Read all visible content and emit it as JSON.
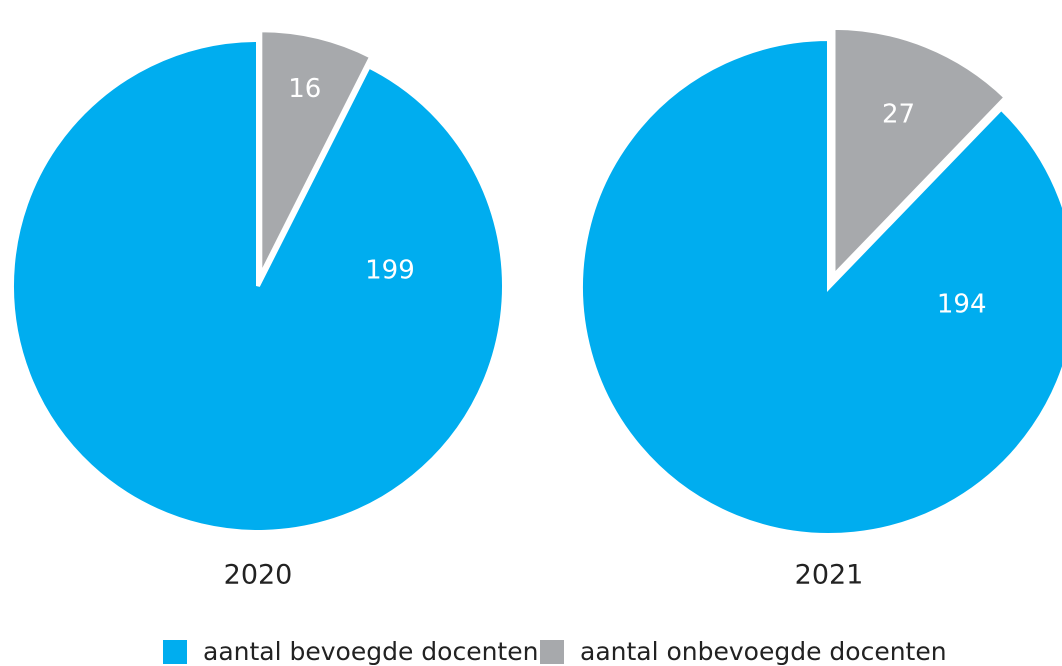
{
  "chart_data": [
    {
      "type": "pie",
      "title": "2020",
      "slices": [
        {
          "label": "aantal bevoegde docenten",
          "value": 199
        },
        {
          "label": "aantal onbevoegde docenten",
          "value": 16
        }
      ],
      "exploded": "aantal onbevoegde docenten"
    },
    {
      "type": "pie",
      "title": "2021",
      "slices": [
        {
          "label": "aantal bevoegde docenten",
          "value": 194
        },
        {
          "label": "aantal onbevoegde docenten",
          "value": 27
        }
      ],
      "exploded": "aantal onbevoegde docenten"
    }
  ],
  "legend": {
    "placement": "bottom-center",
    "items": [
      {
        "label": "aantal bevoegde docenten",
        "color": "#00adef"
      },
      {
        "label": "aantal onbevoegde docenten",
        "color": "#a7a9ac"
      }
    ]
  },
  "colors": {
    "aantal bevoegde docenten": "#00adef",
    "aantal onbevoegde docenten": "#a7a9ac"
  }
}
